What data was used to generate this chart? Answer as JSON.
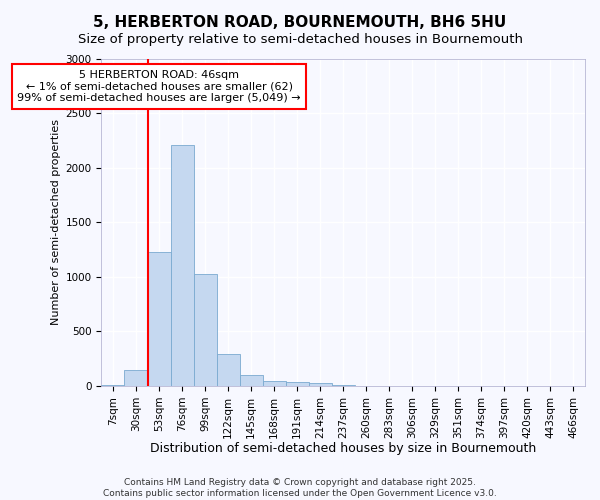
{
  "title": "5, HERBERTON ROAD, BOURNEMOUTH, BH6 5HU",
  "subtitle": "Size of property relative to semi-detached houses in Bournemouth",
  "xlabel": "Distribution of semi-detached houses by size in Bournemouth",
  "ylabel": "Number of semi-detached properties",
  "footer_line1": "Contains HM Land Registry data © Crown copyright and database right 2025.",
  "footer_line2": "Contains public sector information licensed under the Open Government Licence v3.0.",
  "bin_labels": [
    "7sqm",
    "30sqm",
    "53sqm",
    "76sqm",
    "99sqm",
    "122sqm",
    "145sqm",
    "168sqm",
    "191sqm",
    "214sqm",
    "237sqm",
    "260sqm",
    "283sqm",
    "306sqm",
    "329sqm",
    "351sqm",
    "374sqm",
    "397sqm",
    "420sqm",
    "443sqm",
    "466sqm"
  ],
  "bar_values": [
    10,
    150,
    1230,
    2210,
    1030,
    295,
    100,
    50,
    40,
    25,
    5,
    0,
    0,
    0,
    0,
    0,
    0,
    0,
    0,
    0,
    0
  ],
  "bar_color": "#c5d8f0",
  "bar_edge_color": "#7aaad0",
  "annotation_text": "5 HERBERTON ROAD: 46sqm\n← 1% of semi-detached houses are smaller (62)\n99% of semi-detached houses are larger (5,049) →",
  "annotation_box_color": "white",
  "annotation_box_edge_color": "red",
  "vline_color": "red",
  "ylim": [
    0,
    3000
  ],
  "yticks": [
    0,
    500,
    1000,
    1500,
    2000,
    2500,
    3000
  ],
  "background_color": "#f7f8ff",
  "grid_color": "white",
  "title_fontsize": 11,
  "subtitle_fontsize": 9.5,
  "xlabel_fontsize": 9,
  "ylabel_fontsize": 8,
  "tick_fontsize": 7.5,
  "annotation_fontsize": 8,
  "footer_fontsize": 6.5
}
